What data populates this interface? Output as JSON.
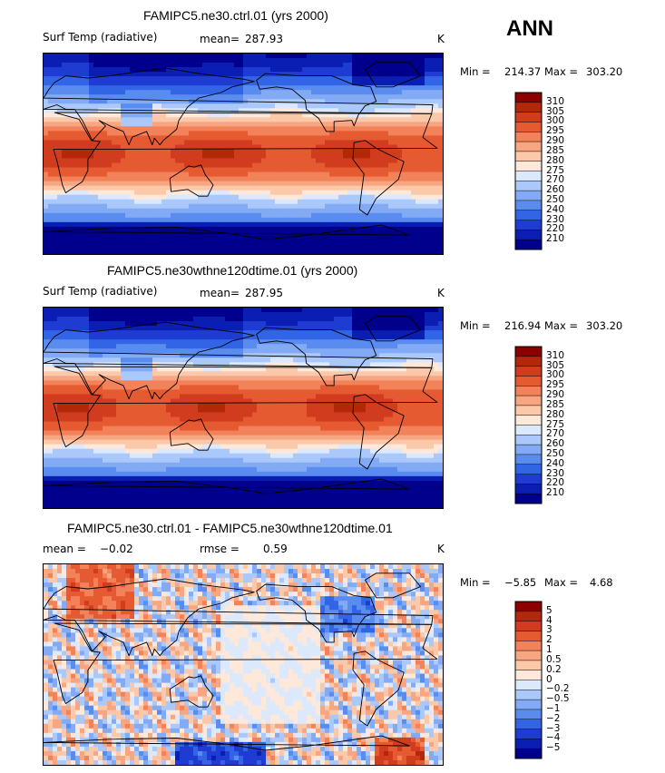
{
  "season": "ANN",
  "colors": {
    "abs": [
      "#00008c",
      "#0a1eb4",
      "#1e3cd2",
      "#3264e6",
      "#5a8cf0",
      "#82aaf5",
      "#aac8fa",
      "#dce8fc",
      "#fde8da",
      "#fcc8aa",
      "#f8a582",
      "#f2825a",
      "#e65a32",
      "#d23c1e",
      "#b4280a",
      "#8c0000"
    ],
    "diff": [
      "#00008c",
      "#0a1eb4",
      "#1e3cd2",
      "#3264e6",
      "#5a8cf0",
      "#82aaf5",
      "#aac8fa",
      "#dce8fc",
      "#fde8da",
      "#fcc8aa",
      "#f8a582",
      "#f2825a",
      "#e65a32",
      "#d23c1e",
      "#b4280a",
      "#8c0000"
    ]
  },
  "chart_data": [
    {
      "type": "heatmap",
      "title": "FAMIPC5.ne30.ctrl.01 (yrs 2000)",
      "variable": "Surf Temp (radiative)",
      "stat_label": "mean=",
      "stat_value": "287.93",
      "units": "K",
      "min_label": "Min =",
      "min_value": "214.37",
      "max_label": "Max =",
      "max_value": "303.20",
      "levels": [
        "310",
        "305",
        "300",
        "295",
        "290",
        "285",
        "280",
        "275",
        "270",
        "260",
        "250",
        "240",
        "230",
        "220",
        "210"
      ]
    },
    {
      "type": "heatmap",
      "title": "FAMIPC5.ne30wthne120dtime.01 (yrs 2000)",
      "variable": "Surf Temp (radiative)",
      "stat_label": "mean=",
      "stat_value": "287.95",
      "units": "K",
      "min_label": "Min =",
      "min_value": "216.94",
      "max_label": "Max =",
      "max_value": "303.20",
      "levels": [
        "310",
        "305",
        "300",
        "295",
        "290",
        "285",
        "280",
        "275",
        "270",
        "260",
        "250",
        "240",
        "230",
        "220",
        "210"
      ]
    },
    {
      "type": "heatmap",
      "title": "FAMIPC5.ne30.ctrl.01 - FAMIPC5.ne30wthne120dtime.01",
      "stat_label": "mean =",
      "stat_value": "−0.02",
      "stat2_label": "rmse =",
      "stat2_value": "0.59",
      "units": "K",
      "min_label": "Min =",
      "min_value": "−5.85",
      "max_label": "Max =",
      "max_value": "4.68",
      "levels": [
        "5",
        "4",
        "3",
        "2",
        "1",
        "0.5",
        "0.2",
        "0",
        "−0.2",
        "−0.5",
        "−1",
        "−2",
        "−3",
        "−4",
        "−5"
      ]
    }
  ]
}
